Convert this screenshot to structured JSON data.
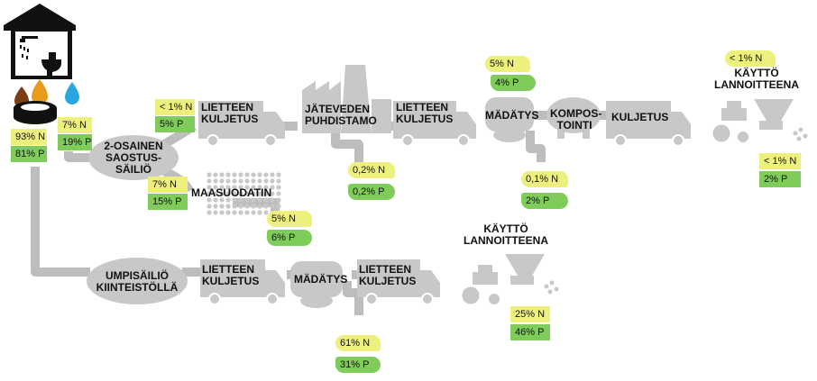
{
  "labels": {
    "tank_2": "2-OSAINEN\nSAOSTUS-\nSÄILIÖ",
    "haul_1": "LIETTEEN\nKULJETUS",
    "plant": "JÄTEVEDEN\nPUHDISTAMO",
    "haul_2": "LIETTEEN\nKULJETUS",
    "digest_1": "MÄDÄTYS",
    "compost": "KOMPOS-\nTOINTI",
    "haul_3": "KULJETUS",
    "fert_1": "KÄYTTÖ\nLANNOITTEENA",
    "filter": "MAASUODATIN",
    "tank_sealed": "UMPISÄILIÖ\nKIINTEISTÖLLÄ",
    "haul_4": "LIETTEEN\nKULJETUS",
    "digest_2": "MÄDÄTYS",
    "haul_5": "LIETTEEN\nKULJETUS",
    "fert_2": "KÄYTTÖ\nLANNOITTEENA"
  },
  "badges": {
    "src_n": "93% N",
    "src_p": "81% P",
    "grey_n": "7% N",
    "grey_p": "19% P",
    "haul1_n": "< 1% N",
    "haul1_p": "5% P",
    "filter_in_n": "7% N",
    "filter_in_p": "15% P",
    "filter_out_n": "5% N",
    "filter_out_p": "6% P",
    "plant_n": "0,2% N",
    "plant_p": "0,2% P",
    "dig1_top_n": "5% N",
    "dig1_top_p": "4% P",
    "dig1_n": "0,1% N",
    "dig1_p": "2% P",
    "fert1_top_n": "< 1% N",
    "fert1_n": "< 1% N",
    "fert1_p": "2% P",
    "dig2_n": "61% N",
    "dig2_p": "31% P",
    "fert2_n": "25% N",
    "fert2_p": "46% P"
  },
  "colors": {
    "pipe": "#bdbdbd",
    "device": "#c8c8c8",
    "yellow": "#eef07e",
    "green": "#7fcc5a",
    "water": "#2aa7e0",
    "brown": "#7a3e12",
    "amber": "#e89a1c"
  }
}
